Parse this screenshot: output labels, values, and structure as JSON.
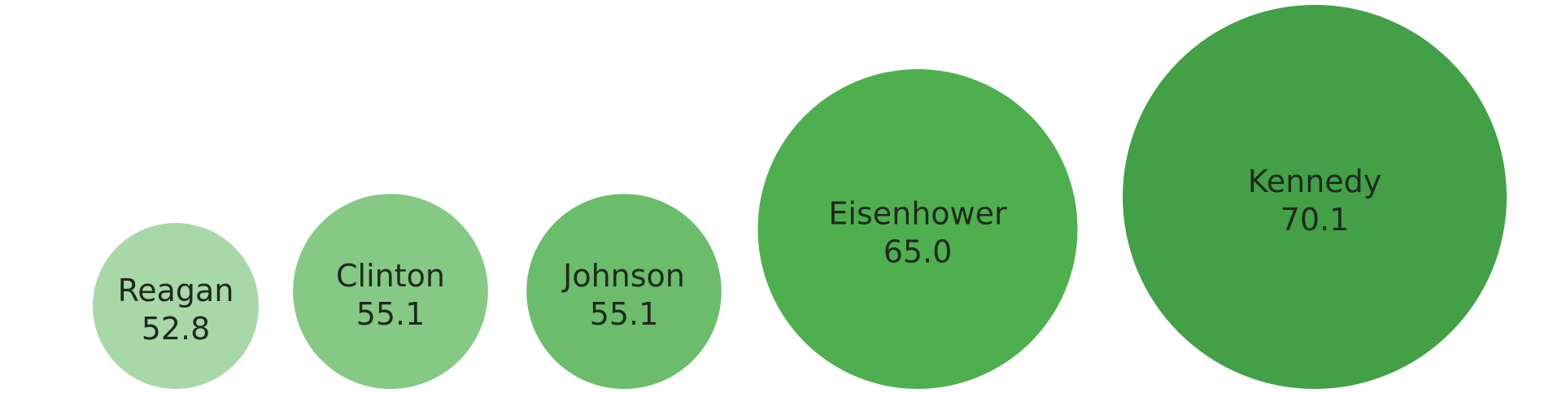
{
  "chart_data": {
    "type": "bubble",
    "title": "",
    "categories": [
      "Reagan",
      "Clinton",
      "Johnson",
      "Eisenhower",
      "Kennedy"
    ],
    "values": [
      52.8,
      55.1,
      55.1,
      65.0,
      70.1
    ],
    "value_labels": [
      "52.8",
      "55.1",
      "55.1",
      "65.0",
      "70.1"
    ],
    "colors": [
      "#a8d8a8",
      "#85c985",
      "#6bbd6b",
      "#4faf4f",
      "#43a047"
    ],
    "legend": "none",
    "grid": false,
    "axes": "none"
  }
}
